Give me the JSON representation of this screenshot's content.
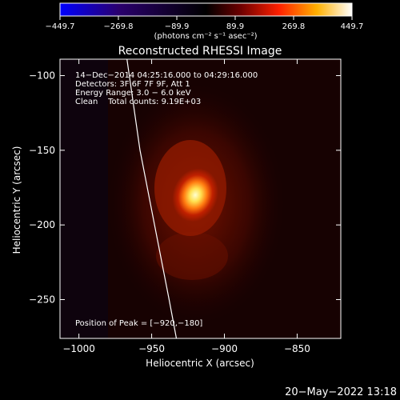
{
  "colorbar": {
    "ticks": [
      "−449.7",
      "−269.8",
      "−89.9",
      "89.9",
      "269.8",
      "449.7"
    ],
    "tick_values": [
      -449.7,
      -269.8,
      -89.9,
      89.9,
      269.8,
      449.7
    ],
    "range": [
      -449.7,
      449.7
    ],
    "unit_label": "(photons cm⁻² s⁻¹ asec⁻²)",
    "palette": [
      "#0000ff",
      "#2a006e",
      "#000000",
      "#6e0000",
      "#ff2000",
      "#ffb000",
      "#ffffff"
    ]
  },
  "chart_data": {
    "type": "heatmap",
    "title": "Reconstructed RHESSI Image",
    "xlabel": "Heliocentric X (arcsec)",
    "ylabel": "Heliocentric Y (arcsec)",
    "xlim": [
      -1013,
      -820
    ],
    "ylim": [
      -276,
      -89
    ],
    "x_ticks": [
      {
        "value": -1000,
        "label": "−1000"
      },
      {
        "value": -950,
        "label": "−950"
      },
      {
        "value": -900,
        "label": "−900"
      },
      {
        "value": -850,
        "label": "−850"
      }
    ],
    "y_ticks": [
      {
        "value": -100,
        "label": "−100"
      },
      {
        "value": -150,
        "label": "−150"
      },
      {
        "value": -200,
        "label": "−200"
      },
      {
        "value": -250,
        "label": "−250"
      }
    ],
    "annotations": [
      "14−Dec−2014 04:25:16.000 to 04:29:16.000",
      "Detectors: 3F 6F 7F 9F, Att 1",
      "Energy Range: 3.0 − 6.0 keV",
      "Clean    Total counts: 9.19E+03"
    ],
    "peak_label": "Position of Peak = [−920,−180]",
    "peak": {
      "x": -920,
      "y": -180,
      "value": 449.7
    },
    "limb_points": [
      [
        -967,
        -89
      ],
      [
        -958,
        -150
      ],
      [
        -948,
        -200
      ],
      [
        -938,
        -250
      ],
      [
        -933,
        -276
      ]
    ],
    "grid": false
  },
  "footer": {
    "timestamp": "20−May−2022 13:18"
  }
}
